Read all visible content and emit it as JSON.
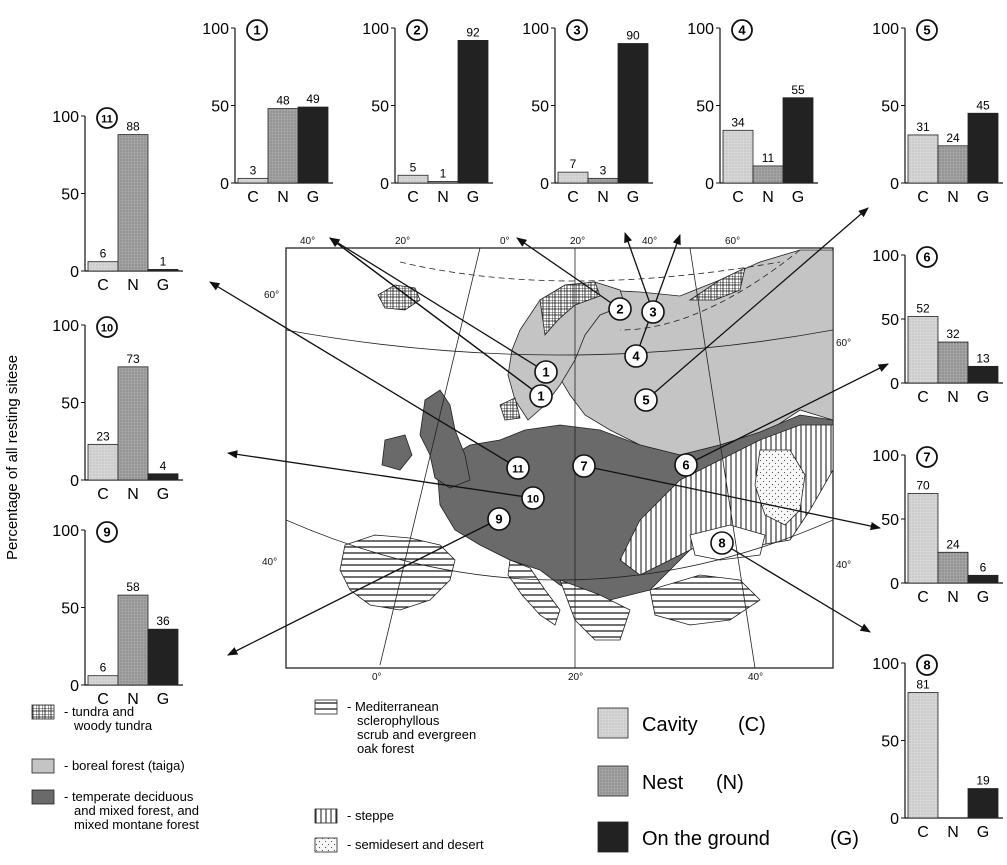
{
  "y_axis_title": "Percentage of all resting sitese",
  "bar_categories": [
    "C",
    "N",
    "G"
  ],
  "colors": {
    "cavity": "#d2d2d2",
    "nest": "#9a9a9a",
    "ground": "#262626",
    "tundra": "#ececec",
    "boreal": "#c6c6c6",
    "temperate": "#6a6a6a",
    "steppe": "#ffffff",
    "mediterranean": "#ffffff",
    "desert": "#f4f4f4",
    "map_bg": "#ffffff"
  },
  "chart_data": [
    {
      "type": "bar",
      "id": "1",
      "categories": [
        "C",
        "N",
        "G"
      ],
      "values": [
        3,
        48,
        49
      ],
      "ylim": [
        0,
        100
      ],
      "yticks": [
        0,
        50,
        100
      ]
    },
    {
      "type": "bar",
      "id": "2",
      "categories": [
        "C",
        "N",
        "G"
      ],
      "values": [
        5,
        1,
        92
      ],
      "ylim": [
        0,
        100
      ],
      "yticks": [
        0,
        50,
        100
      ]
    },
    {
      "type": "bar",
      "id": "3",
      "categories": [
        "C",
        "N",
        "G"
      ],
      "values": [
        7,
        3,
        90
      ],
      "ylim": [
        0,
        100
      ],
      "yticks": [
        0,
        50,
        100
      ]
    },
    {
      "type": "bar",
      "id": "4",
      "categories": [
        "C",
        "N",
        "G"
      ],
      "values": [
        34,
        11,
        55
      ],
      "ylim": [
        0,
        100
      ],
      "yticks": [
        0,
        50,
        100
      ]
    },
    {
      "type": "bar",
      "id": "5",
      "categories": [
        "C",
        "N",
        "G"
      ],
      "values": [
        31,
        24,
        45
      ],
      "ylim": [
        0,
        100
      ],
      "yticks": [
        0,
        50,
        100
      ]
    },
    {
      "type": "bar",
      "id": "6",
      "categories": [
        "C",
        "N",
        "G"
      ],
      "values": [
        52,
        32,
        13
      ],
      "ylim": [
        0,
        100
      ],
      "yticks": [
        0,
        50,
        100
      ]
    },
    {
      "type": "bar",
      "id": "7",
      "categories": [
        "C",
        "N",
        "G"
      ],
      "values": [
        70,
        24,
        6
      ],
      "ylim": [
        0,
        100
      ],
      "yticks": [
        0,
        50,
        100
      ]
    },
    {
      "type": "bar",
      "id": "8",
      "categories": [
        "C",
        "N",
        "G"
      ],
      "values": [
        81,
        0,
        19
      ],
      "ylim": [
        0,
        100
      ],
      "yticks": [
        0,
        50,
        100
      ]
    },
    {
      "type": "bar",
      "id": "9",
      "categories": [
        "C",
        "N",
        "G"
      ],
      "values": [
        6,
        58,
        36
      ],
      "ylim": [
        0,
        100
      ],
      "yticks": [
        0,
        50,
        100
      ]
    },
    {
      "type": "bar",
      "id": "10",
      "categories": [
        "C",
        "N",
        "G"
      ],
      "values": [
        23,
        73,
        4
      ],
      "ylim": [
        0,
        100
      ],
      "yticks": [
        0,
        50,
        100
      ]
    },
    {
      "type": "bar",
      "id": "11",
      "categories": [
        "C",
        "N",
        "G"
      ],
      "values": [
        6,
        88,
        1
      ],
      "ylim": [
        0,
        100
      ],
      "yticks": [
        0,
        50,
        100
      ]
    }
  ],
  "map": {
    "longitude_labels_top": [
      "40°",
      "20°",
      "0°",
      "20°",
      "40°",
      "60°"
    ],
    "longitude_labels_bottom": [
      "0°",
      "20°",
      "40°"
    ],
    "latitude_labels": [
      "60°",
      "60°",
      "40°",
      "40°"
    ],
    "site_markers": [
      "1",
      "1",
      "1",
      "2",
      "3",
      "4",
      "5",
      "6",
      "7",
      "8",
      "9",
      "10",
      "11"
    ]
  },
  "legend_biomes": [
    {
      "key": "tundra",
      "label": "- tundra and woody tundra"
    },
    {
      "key": "boreal",
      "label": "- boreal forest (taiga)"
    },
    {
      "key": "temperate",
      "label": "- temperate deciduous and mixed forest, and mixed montane forest"
    },
    {
      "key": "mediterranean",
      "label": "- Mediterranean sclerophyllous scrub and evergreen oak forest"
    },
    {
      "key": "steppe",
      "label": "- steppe"
    },
    {
      "key": "desert",
      "label": "- semidesert and desert"
    }
  ],
  "legend_sites": [
    {
      "key": "cavity",
      "label": "Cavity",
      "abbr": "(C)"
    },
    {
      "key": "nest",
      "label": "Nest",
      "abbr": "(N)"
    },
    {
      "key": "ground",
      "label": "On the ground",
      "abbr": "(G)"
    }
  ]
}
